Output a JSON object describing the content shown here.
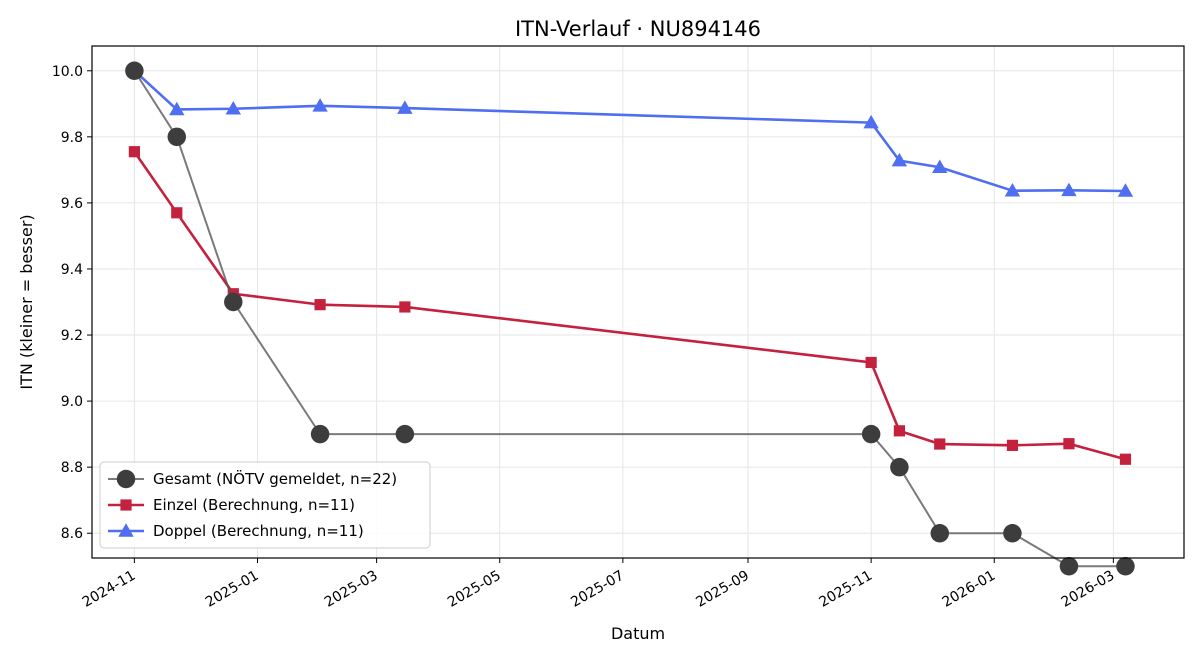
{
  "chart_data": {
    "type": "line",
    "title": "ITN-Verlauf · NU894146",
    "xlabel": "Datum",
    "ylabel": "ITN  (kleiner = besser)",
    "xlim": [
      "2024-10-11",
      "2026-04-05"
    ],
    "ylim": [
      8.525,
      10.075
    ],
    "yticks": [
      8.6,
      8.8,
      9.0,
      9.2,
      9.4,
      9.6,
      9.8,
      10.0
    ],
    "ytick_labels": [
      "8.6",
      "8.8",
      "9.0",
      "9.2",
      "9.4",
      "9.6",
      "9.8",
      "10.0"
    ],
    "xticks": [
      "2024-11-01",
      "2025-01-01",
      "2025-03-01",
      "2025-05-01",
      "2025-07-01",
      "2025-09-01",
      "2025-11-01",
      "2026-01-01",
      "2026-03-01"
    ],
    "xtick_labels": [
      "2024-11",
      "2025-01",
      "2025-03",
      "2025-05",
      "2025-07",
      "2025-09",
      "2025-11",
      "2026-01",
      "2026-03"
    ],
    "grid": true,
    "legend_position": "lower-left",
    "series": [
      {
        "name": "Gesamt (NÖTV gemeldet, n=22)",
        "color": "#555555",
        "marker": "circle",
        "x": [
          "2024-11-01",
          "2024-11-22",
          "2024-12-20",
          "2025-02-01",
          "2025-03-15",
          "2025-11-01",
          "2025-11-15",
          "2025-12-05",
          "2026-01-10",
          "2026-02-07",
          "2026-03-07"
        ],
        "y": [
          10.0,
          9.8,
          9.3,
          8.9,
          8.9,
          8.9,
          8.8,
          8.6,
          8.6,
          8.5,
          8.5
        ]
      },
      {
        "name": "Einzel (Berechnung, n=11)",
        "color": "#c4213f",
        "marker": "square",
        "x": [
          "2024-11-01",
          "2024-11-22",
          "2024-12-20",
          "2025-02-01",
          "2025-03-15",
          "2025-11-01",
          "2025-11-15",
          "2025-12-05",
          "2026-01-10",
          "2026-02-07",
          "2026-03-07"
        ],
        "y": [
          9.755,
          9.57,
          9.325,
          9.292,
          9.285,
          9.117,
          8.91,
          8.87,
          8.866,
          8.871,
          8.824
        ]
      },
      {
        "name": "Doppel (Berechnung, n=11)",
        "color": "#4f6ff0",
        "marker": "triangle",
        "x": [
          "2024-11-01",
          "2024-11-22",
          "2024-12-20",
          "2025-02-01",
          "2025-03-15",
          "2025-11-01",
          "2025-11-15",
          "2025-12-05",
          "2026-01-10",
          "2026-02-07",
          "2026-03-07"
        ],
        "y": [
          10.0,
          9.883,
          9.885,
          9.894,
          9.887,
          9.843,
          9.728,
          9.708,
          9.637,
          9.638,
          9.636
        ]
      }
    ]
  }
}
